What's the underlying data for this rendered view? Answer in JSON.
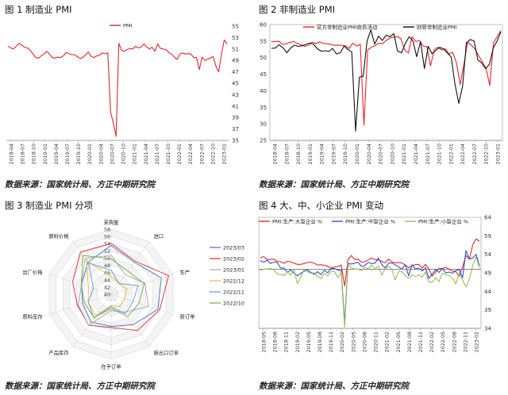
{
  "chart_data": [
    {
      "type": "line",
      "title": "图 1   制造业 PMI",
      "series": [
        {
          "name": "PMI",
          "color": "#e8262a",
          "values": [
            51.5,
            51.2,
            51.0,
            51.5,
            52.0,
            51.7,
            51.3,
            51.2,
            50.8,
            50.2,
            49.5,
            49.4,
            49.8,
            50.1,
            50.6,
            50.1,
            49.5,
            49.4,
            49.6,
            49.5,
            49.8,
            50.4,
            50.2,
            50.0,
            50.0,
            49.7,
            49.3,
            49.5,
            50.0,
            50.5,
            49.7,
            49.5,
            49.8,
            49.9,
            50.3,
            50.2,
            50.3,
            40.0,
            38.0,
            35.7,
            52.0,
            50.8,
            50.6,
            50.9,
            51.1,
            51.0,
            51.5,
            51.2,
            51.3,
            51.9,
            51.4,
            51.0,
            51.3,
            50.6,
            51.9,
            51.1,
            51.0,
            50.9,
            50.4,
            50.1,
            49.6,
            49.2,
            50.1,
            50.3,
            50.1,
            50.2,
            50.1,
            49.5,
            49.5,
            47.4,
            49.6,
            49.0,
            49.2,
            49.4,
            49.7,
            48.0,
            47.0,
            50.1,
            52.6,
            51.9
          ]
        }
      ],
      "x_ticks": [
        "2018-04",
        "2018-07",
        "2018-10",
        "2019-01",
        "2019-04",
        "2019-07",
        "2019-10",
        "2020-01",
        "2020-04",
        "2020-07",
        "2020-10",
        "2021-01",
        "2021-04",
        "2021-07",
        "2021-10",
        "2022-01",
        "2022-04",
        "2022-07",
        "2022-10",
        "2023-01"
      ],
      "y_ticks": [
        "35",
        "37",
        "39",
        "41",
        "43",
        "45",
        "47",
        "49",
        "51",
        "53",
        "55"
      ],
      "ylim": [
        35,
        55
      ]
    },
    {
      "type": "line",
      "title": "图 2   非制造业 PMI",
      "series": [
        {
          "name": "官方非制造业PMI商务活动",
          "color": "#e8262a",
          "values": [
            54.8,
            54.9,
            55.0,
            54.0,
            54.2,
            54.6,
            54.9,
            54.3,
            53.9,
            53.4,
            53.8,
            54.7,
            54.3,
            54.8,
            54.3,
            54.2,
            54.1,
            53.7,
            53.8,
            53.7,
            53.6,
            52.8,
            54.4,
            53.5,
            54.1,
            29.6,
            52.3,
            53.2,
            53.6,
            54.4,
            54.2,
            55.2,
            55.9,
            56.2,
            56.4,
            55.7,
            52.4,
            51.4,
            56.3,
            54.9,
            55.2,
            53.5,
            53.3,
            47.5,
            52.4,
            53.2,
            52.3,
            52.7,
            51.1,
            51.6,
            48.4,
            41.9,
            47.8,
            54.7,
            53.8,
            52.6,
            50.6,
            48.7,
            46.7,
            41.6,
            54.4,
            56.3,
            58.2
          ]
        },
        {
          "name": "财新非制造业PMI",
          "color": "#111111",
          "values": [
            52.8,
            52.9,
            53.9,
            53.0,
            51.5,
            52.9,
            53.8,
            53.4,
            53.6,
            54.0,
            54.4,
            54.1,
            52.7,
            52.0,
            52.1,
            51.9,
            52.8,
            51.1,
            51.5,
            53.5,
            52.5,
            51.7,
            27.8,
            44.1,
            44.4,
            55.0,
            58.4,
            54.1,
            56.5,
            55.2,
            56.8,
            56.3,
            57.3,
            52.0,
            51.5,
            54.3,
            56.3,
            55.1,
            50.3,
            54.9,
            46.7,
            53.4,
            51.2,
            52.2,
            53.1,
            52.7,
            51.4,
            50.2,
            42.0,
            36.2,
            41.4,
            54.5,
            55.5,
            55.0,
            49.3,
            48.4,
            46.7,
            48.0,
            52.9,
            55.0,
            57.8
          ]
        }
      ],
      "x_ticks": [
        "2018-04",
        "2018-07",
        "2018-10",
        "2019-01",
        "2019-04",
        "2019-07",
        "2019-10",
        "2020-01",
        "2020-04",
        "2020-07",
        "2020-10",
        "2021-01",
        "2021-04",
        "2021-07",
        "2021-10",
        "2022-01",
        "2022-04",
        "2022-07",
        "2022-10",
        "2023-01"
      ],
      "y_ticks": [
        "25",
        "30",
        "35",
        "40",
        "45",
        "50",
        "55",
        "60"
      ],
      "ylim": [
        25,
        60
      ]
    },
    {
      "type": "radar",
      "title": "图 3   制造业 PMI 分项",
      "axes": [
        "采购量",
        "进口",
        "生产",
        "新订单",
        "新出口订单",
        "在手订单",
        "产品库存",
        "原料库存",
        "出厂价格",
        "原料价格"
      ],
      "r_ticks": [
        "40",
        "42",
        "44",
        "46",
        "48",
        "50",
        "52",
        "54",
        "56",
        "58"
      ],
      "rlim": [
        40,
        58
      ],
      "series": [
        {
          "name": "2023/03",
          "color": "#4472c4",
          "values": [
            53.5,
            50.9,
            54.6,
            53.6,
            50.4,
            48.9,
            49.5,
            48.3,
            48.6,
            50.9
          ]
        },
        {
          "name": "2023/02",
          "color": "#e8262a",
          "values": [
            54.1,
            51.3,
            56.7,
            54.1,
            52.4,
            49.2,
            50.6,
            49.8,
            51.2,
            54.4
          ]
        },
        {
          "name": "2023/01",
          "color": "#a5a5a5",
          "values": [
            50.8,
            46.7,
            49.8,
            50.9,
            46.1,
            44.5,
            50.6,
            49.6,
            48.6,
            52.2
          ]
        },
        {
          "name": "2022/12",
          "color": "#f2b531",
          "values": [
            44.9,
            43.7,
            44.6,
            43.9,
            44.2,
            43.1,
            47.3,
            46.7,
            46.6,
            51.6
          ]
        },
        {
          "name": "2022/11",
          "color": "#5b9bd5",
          "values": [
            46.7,
            43.7,
            47.8,
            46.4,
            46.7,
            43.4,
            48.1,
            46.7,
            45.1,
            50.7
          ]
        },
        {
          "name": "2022/10",
          "color": "#70ad47",
          "values": [
            49.8,
            47.9,
            49.6,
            48.1,
            47.6,
            43.9,
            48.0,
            47.7,
            48.7,
            53.3
          ]
        }
      ]
    },
    {
      "type": "line",
      "title": "图 4   大、中、小企业 PMI 变动",
      "series": [
        {
          "name": "PMI:生产:大型企业  %",
          "color": "#e8262a",
          "values": [
            53.1,
            53.4,
            52.6,
            52.6,
            52.7,
            52.1,
            52.0,
            51.6,
            52.1,
            52.0,
            51.6,
            51.3,
            51.3,
            51.5,
            51.8,
            51.9,
            51.6,
            51.1,
            51.2,
            51.0,
            50.8,
            50.3,
            50.6,
            50.7,
            51.1,
            45.4,
            52.6,
            53.7,
            52.6,
            52.7,
            51.9,
            52.0,
            52.5,
            53.0,
            52.6,
            52.5,
            52.1,
            51.7,
            52.7,
            52.0,
            51.7,
            51.8,
            51.7,
            51.1,
            50.4,
            50.9,
            51.2,
            51.3,
            50.3,
            51.3,
            50.0,
            48.1,
            49.2,
            50.2,
            50.2,
            50.5,
            50.0,
            49.5,
            49.3,
            48.1,
            50.6,
            53.7,
            52.7,
            56.5,
            58.2,
            57.5
          ]
        },
        {
          "name": "PMI:生产:中型企业  %",
          "color": "#2e55c8",
          "values": [
            52.3,
            51.9,
            52.4,
            51.5,
            51.9,
            51.8,
            50.3,
            50.3,
            49.1,
            49.8,
            48.9,
            48.2,
            48.9,
            49.4,
            49.8,
            49.1,
            48.6,
            49.3,
            48.5,
            49.7,
            49.0,
            50.2,
            50.2,
            49.7,
            49.6,
            35.5,
            51.5,
            51.4,
            51.6,
            51.9,
            50.7,
            51.0,
            51.8,
            51.5,
            51.6,
            53.0,
            51.3,
            50.3,
            51.6,
            51.7,
            51.2,
            50.6,
            50.0,
            51.2,
            48.2,
            51.2,
            50.1,
            50.3,
            49.5,
            50.4,
            47.5,
            48.7,
            49.9,
            49.1,
            50.2,
            49.0,
            49.2,
            48.9,
            49.6,
            49.9,
            47.7,
            55.0,
            52.7,
            53.0,
            54.0,
            50.9
          ]
        },
        {
          "name": "PMI:生产:小型企业  %",
          "color": "#9bbb59",
          "values": [
            49.6,
            50.0,
            50.1,
            50.2,
            49.8,
            48.7,
            48.6,
            48.3,
            49.2,
            48.4,
            49.8,
            46.1,
            48.0,
            49.9,
            49.3,
            48.9,
            49.0,
            48.0,
            47.5,
            48.8,
            48.2,
            49.3,
            49.4,
            47.7,
            49.2,
            34.3,
            51.4,
            50.3,
            50.1,
            50.0,
            49.6,
            50.5,
            50.1,
            51.1,
            50.0,
            50.9,
            48.4,
            50.0,
            50.8,
            50.0,
            47.1,
            49.3,
            49.3,
            48.2,
            47.5,
            48.5,
            48.0,
            48.5,
            47.8,
            49.3,
            46.5,
            46.5,
            47.7,
            46.6,
            48.9,
            48.5,
            48.3,
            47.5,
            46.0,
            49.1,
            47.0,
            45.2,
            47.3,
            51.0,
            53.3,
            50.4
          ]
        }
      ],
      "x_ticks": [
        "2018-05",
        "2018-08",
        "2018-11",
        "2019-02",
        "2019-05",
        "2019-08",
        "2019-11",
        "2020-02",
        "2020-05",
        "2020-08",
        "2020-11",
        "2021-02",
        "2021-05",
        "2021-08",
        "2021-11",
        "2022-02",
        "2022-05",
        "2022-08",
        "2022-11",
        "2023-02"
      ],
      "y_ticks": [
        "34",
        "39",
        "44",
        "49",
        "54",
        "59",
        "64"
      ],
      "ylim": [
        34,
        64
      ]
    }
  ],
  "sources": [
    "数据来源：国家统计局、方正中期研究院",
    "数据来源：国家统计局、方正中期研究院",
    "数据来源：国家统计局、方正中期研究院",
    "数据来源：国家统计局、方正中期研究院"
  ]
}
